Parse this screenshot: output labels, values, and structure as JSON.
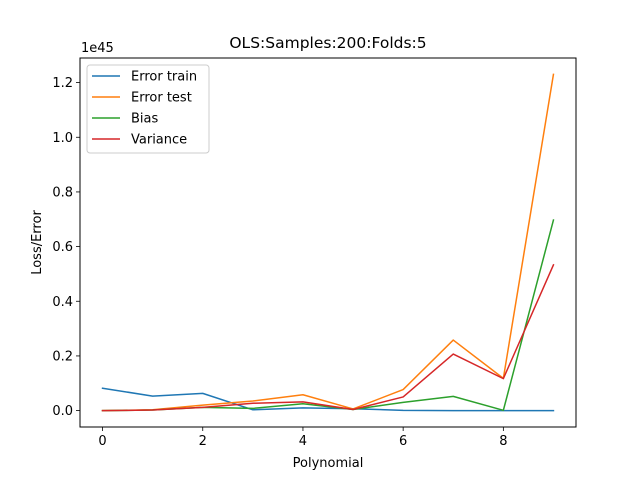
{
  "chart_data": {
    "type": "line",
    "title": "OLS:Samples:200:Folds:5",
    "xlabel": "Polynomial",
    "ylabel": "Loss/Error",
    "scale_label": "1e45",
    "x": [
      0,
      1,
      2,
      3,
      4,
      5,
      6,
      7,
      8,
      9
    ],
    "xlim": [
      -0.45,
      9.45
    ],
    "ylim": [
      -0.06,
      1.29
    ],
    "x_ticks": [
      0,
      2,
      4,
      6,
      8
    ],
    "x_tick_labels": [
      "0",
      "2",
      "4",
      "6",
      "8"
    ],
    "y_ticks": [
      0.0,
      0.2,
      0.4,
      0.6,
      0.8,
      1.0,
      1.2
    ],
    "y_tick_labels": [
      "0.0",
      "0.2",
      "0.4",
      "0.6",
      "0.8",
      "1.0",
      "1.2"
    ],
    "grid": false,
    "legend_position": "top-left",
    "series": [
      {
        "name": "Error train",
        "color": "#1f77b4",
        "values": [
          0.082,
          0.053,
          0.063,
          0.003,
          0.01,
          0.007,
          0.001,
          0.0,
          0.0,
          0.0
        ]
      },
      {
        "name": "Error test",
        "color": "#ff7f0e",
        "values": [
          0.0,
          0.003,
          0.02,
          0.035,
          0.058,
          0.006,
          0.077,
          0.258,
          0.118,
          1.23
        ]
      },
      {
        "name": "Bias",
        "color": "#2ca02c",
        "values": [
          0.0,
          0.002,
          0.012,
          0.008,
          0.025,
          0.004,
          0.03,
          0.052,
          0.001,
          0.697
        ]
      },
      {
        "name": "Variance",
        "color": "#d62728",
        "values": [
          0.0,
          0.002,
          0.012,
          0.027,
          0.032,
          0.004,
          0.05,
          0.207,
          0.117,
          0.533
        ]
      }
    ]
  }
}
